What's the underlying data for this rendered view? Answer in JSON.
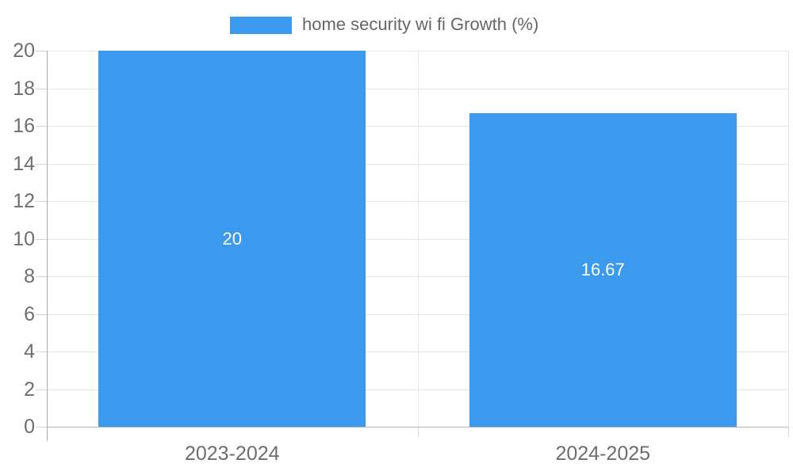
{
  "chart_data": {
    "type": "bar",
    "legend": "home security wi fi Growth (%)",
    "legend_position": "top",
    "categories": [
      "2023-2024",
      "2024-2025"
    ],
    "values": [
      20,
      16.67
    ],
    "data_labels": [
      "20",
      "16.67"
    ],
    "ylim": [
      0,
      20
    ],
    "ytick_step": 2,
    "ytick_labels": [
      "0",
      "2",
      "4",
      "6",
      "8",
      "10",
      "12",
      "14",
      "16",
      "18",
      "20"
    ],
    "grid": true,
    "colors": {
      "series": "#3b99ee",
      "data_label": "#ffffff",
      "axis_text": "#6e6e6e",
      "legend_text": "#666666",
      "gridline": "#e6e6e6",
      "tick": "#d4d4d4",
      "axis_line_x": "#b3b3b3",
      "axis_line_y": "#ababab",
      "background": "#ffffff"
    }
  }
}
